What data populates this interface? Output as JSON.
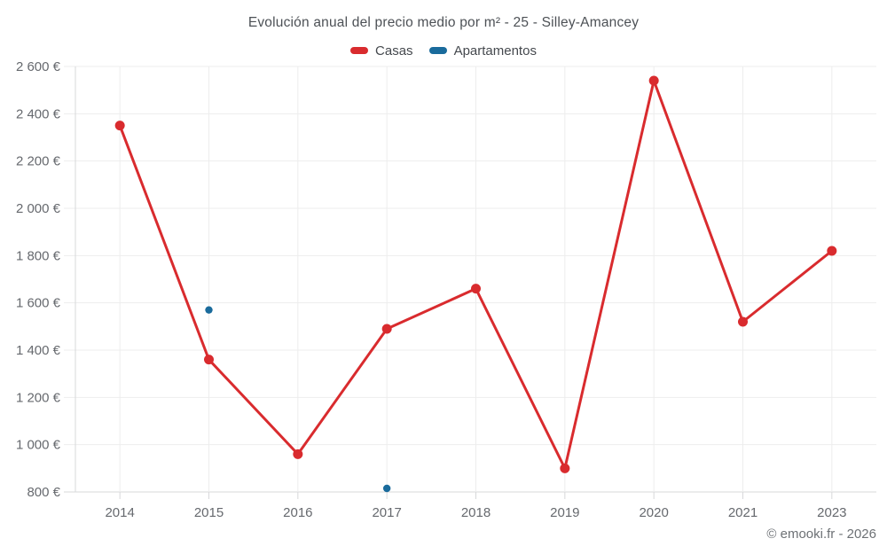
{
  "title": "Evolución anual del precio medio por m² - 25 - Silley-Amancey",
  "watermark": "© emooki.fr - 2026",
  "chart_data": {
    "type": "line",
    "title": "Evolución anual del precio medio por m² - 25 - Silley-Amancey",
    "categories": [
      "2014",
      "2015",
      "2016",
      "2017",
      "2018",
      "2019",
      "2020",
      "2021",
      "2023"
    ],
    "series": [
      {
        "name": "Casas",
        "color": "#d92b2e",
        "line_width": 3,
        "marker_radius": 5.5,
        "values": [
          2350,
          1360,
          960,
          1490,
          1660,
          900,
          2540,
          1520,
          1820
        ]
      },
      {
        "name": "Apartamentos",
        "color": "#1a6b9c",
        "line_width": 0,
        "marker_radius": 4.2,
        "values": [
          null,
          1570,
          null,
          815,
          null,
          null,
          null,
          null,
          null
        ]
      }
    ],
    "xlabel": "",
    "ylabel": "",
    "ylim": [
      800,
      2600
    ],
    "yticks": [
      800,
      1000,
      1200,
      1400,
      1600,
      1800,
      2000,
      2200,
      2400,
      2600
    ],
    "ytick_labels": [
      "800 €",
      "1 000 €",
      "1 200 €",
      "1 400 €",
      "1 600 €",
      "1 800 €",
      "2 000 €",
      "2 200 €",
      "2 400 €",
      "2 600 €"
    ],
    "grid": true,
    "legend_position": "top",
    "grid_color": "#ededed",
    "axis_color": "#d7d8da",
    "tick_label_color": "#66696e"
  }
}
